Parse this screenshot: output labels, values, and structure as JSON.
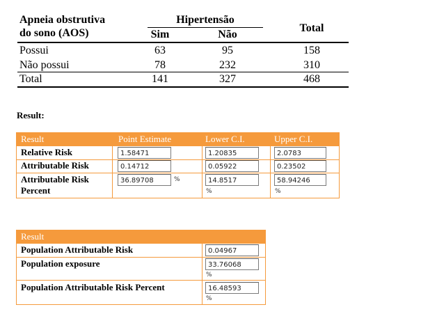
{
  "contingency": {
    "row_header_line1": "Apneia obstrutiva",
    "row_header_line2": "do sono (AOS)",
    "group_header": "Hipertensão",
    "col_sim": "Sim",
    "col_nao": "Não",
    "col_total": "Total",
    "rows": [
      {
        "label": "Possui",
        "sim": "63",
        "nao": "95",
        "total": "158"
      },
      {
        "label": "Não possui",
        "sim": "78",
        "nao": "232",
        "total": "310"
      },
      {
        "label": "Total",
        "sim": "141",
        "nao": "327",
        "total": "468"
      }
    ]
  },
  "result_label": "Result:",
  "table1": {
    "headers": [
      "Result",
      "Point Estimate",
      "Lower C.I.",
      "Upper C.I."
    ],
    "rows": [
      {
        "label": "Relative Risk",
        "point": "1.58471",
        "lower": "1.20835",
        "upper": "2.0783"
      },
      {
        "label": "Attributable Risk",
        "point": "0.14712",
        "lower": "0.05922",
        "upper": "0.23502"
      },
      {
        "label_line1": "Attributable Risk",
        "label_line2": "Percent",
        "point": "36.89708",
        "lower": "14.8517",
        "upper": "58.94246",
        "unit": "%"
      }
    ]
  },
  "table2": {
    "header": "Result",
    "rows": [
      {
        "label": "Population Attributable Risk",
        "value": "0.04967"
      },
      {
        "label": "Population exposure",
        "value": "33.76068",
        "unit": "%"
      },
      {
        "label": "Population Attributable Risk Percent",
        "value": "16.48593",
        "unit": "%"
      }
    ]
  },
  "colors": {
    "accent": "#f59a3c"
  }
}
